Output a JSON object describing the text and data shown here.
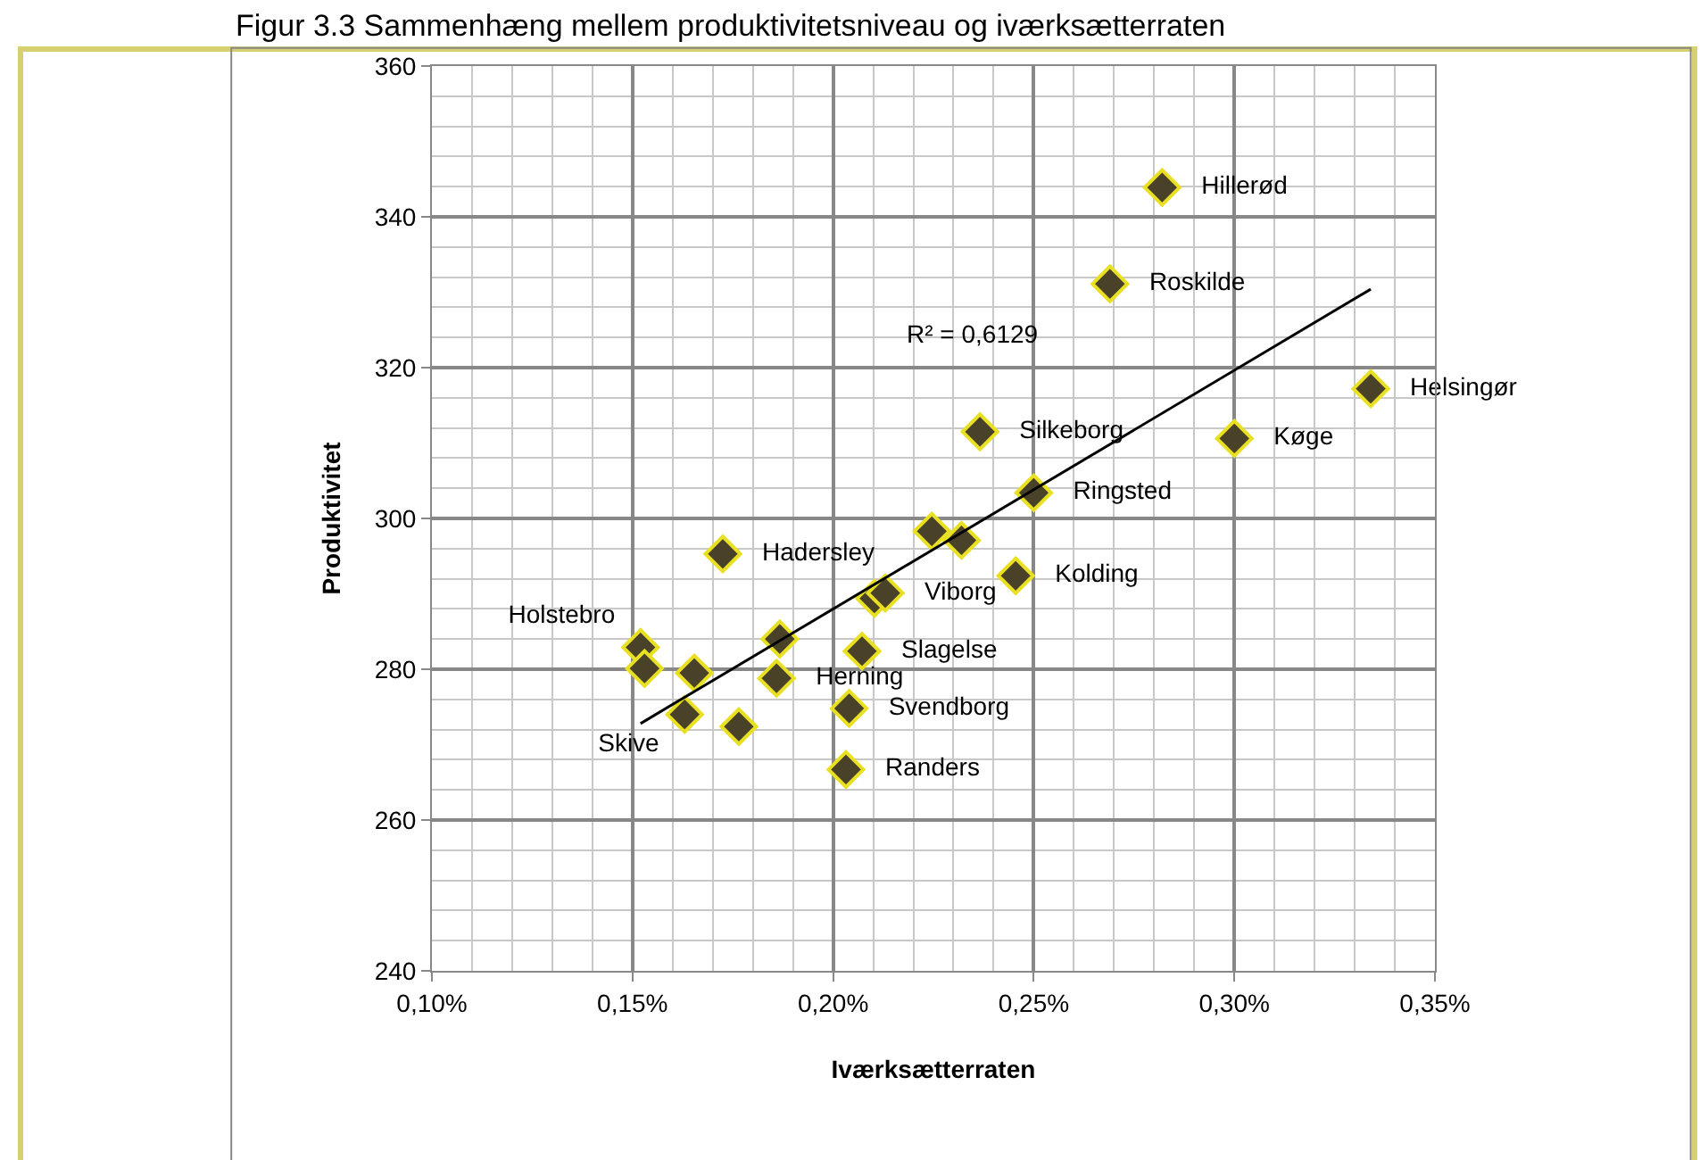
{
  "chart_data": {
    "type": "scatter",
    "title": "Figur 3.3 Sammenhæng mellem produktivitetsniveau og iværksætterraten",
    "xlabel": "Iværksætterraten",
    "ylabel": "Produktivitet",
    "series": [
      {
        "color": "#4a4228",
        "marker": "diamond",
        "x": [
          0.282,
          0.269,
          0.334,
          0.3,
          0.2366,
          0.25,
          0.2246,
          0.232,
          0.2455,
          0.1725,
          0.2103,
          0.213,
          0.1867,
          0.2072,
          0.152,
          0.153,
          0.1654,
          0.1859,
          0.163,
          0.1765,
          0.204,
          0.2032
        ],
        "values": [
          343.9,
          331.1,
          317.2,
          310.6,
          311.5,
          303.4,
          298.3,
          297.1,
          292.4,
          295.3,
          289.4,
          290.1,
          284.0,
          282.4,
          282.9,
          280.1,
          279.5,
          278.8,
          274.0,
          272.4,
          274.8,
          266.7
        ],
        "value_labels": [
          "Hillerød",
          "Roskilde",
          "Helsingør",
          "Køge",
          "Silkeborg",
          "Ringsted",
          null,
          null,
          "Kolding",
          "Hadersley",
          null,
          "Viborg",
          null,
          "Slagelse",
          "Holstebro",
          null,
          null,
          "Herning",
          "Skive",
          null,
          "Svendborg",
          "Randers"
        ]
      },
      {
        "type": "line",
        "color": "#000000",
        "x": [
          0.152,
          0.334
        ],
        "values": [
          272.8,
          330.4
        ]
      }
    ],
    "annotations": [
      "R² = 0,6129"
    ],
    "grid": true,
    "legend": false,
    "xlim": [
      0.1,
      0.35
    ],
    "xticks": [
      {
        "value": 0.1,
        "label": "0,10%"
      },
      {
        "value": 0.15,
        "label": "0,15%"
      },
      {
        "value": 0.2,
        "label": "0,20%"
      },
      {
        "value": 0.25,
        "label": "0,25%"
      },
      {
        "value": 0.3,
        "label": "0,30%"
      },
      {
        "value": 0.35,
        "label": "0,35%"
      }
    ],
    "ylim": [
      240,
      360
    ],
    "yticks": [
      240,
      260,
      280,
      300,
      320,
      340,
      360
    ]
  }
}
